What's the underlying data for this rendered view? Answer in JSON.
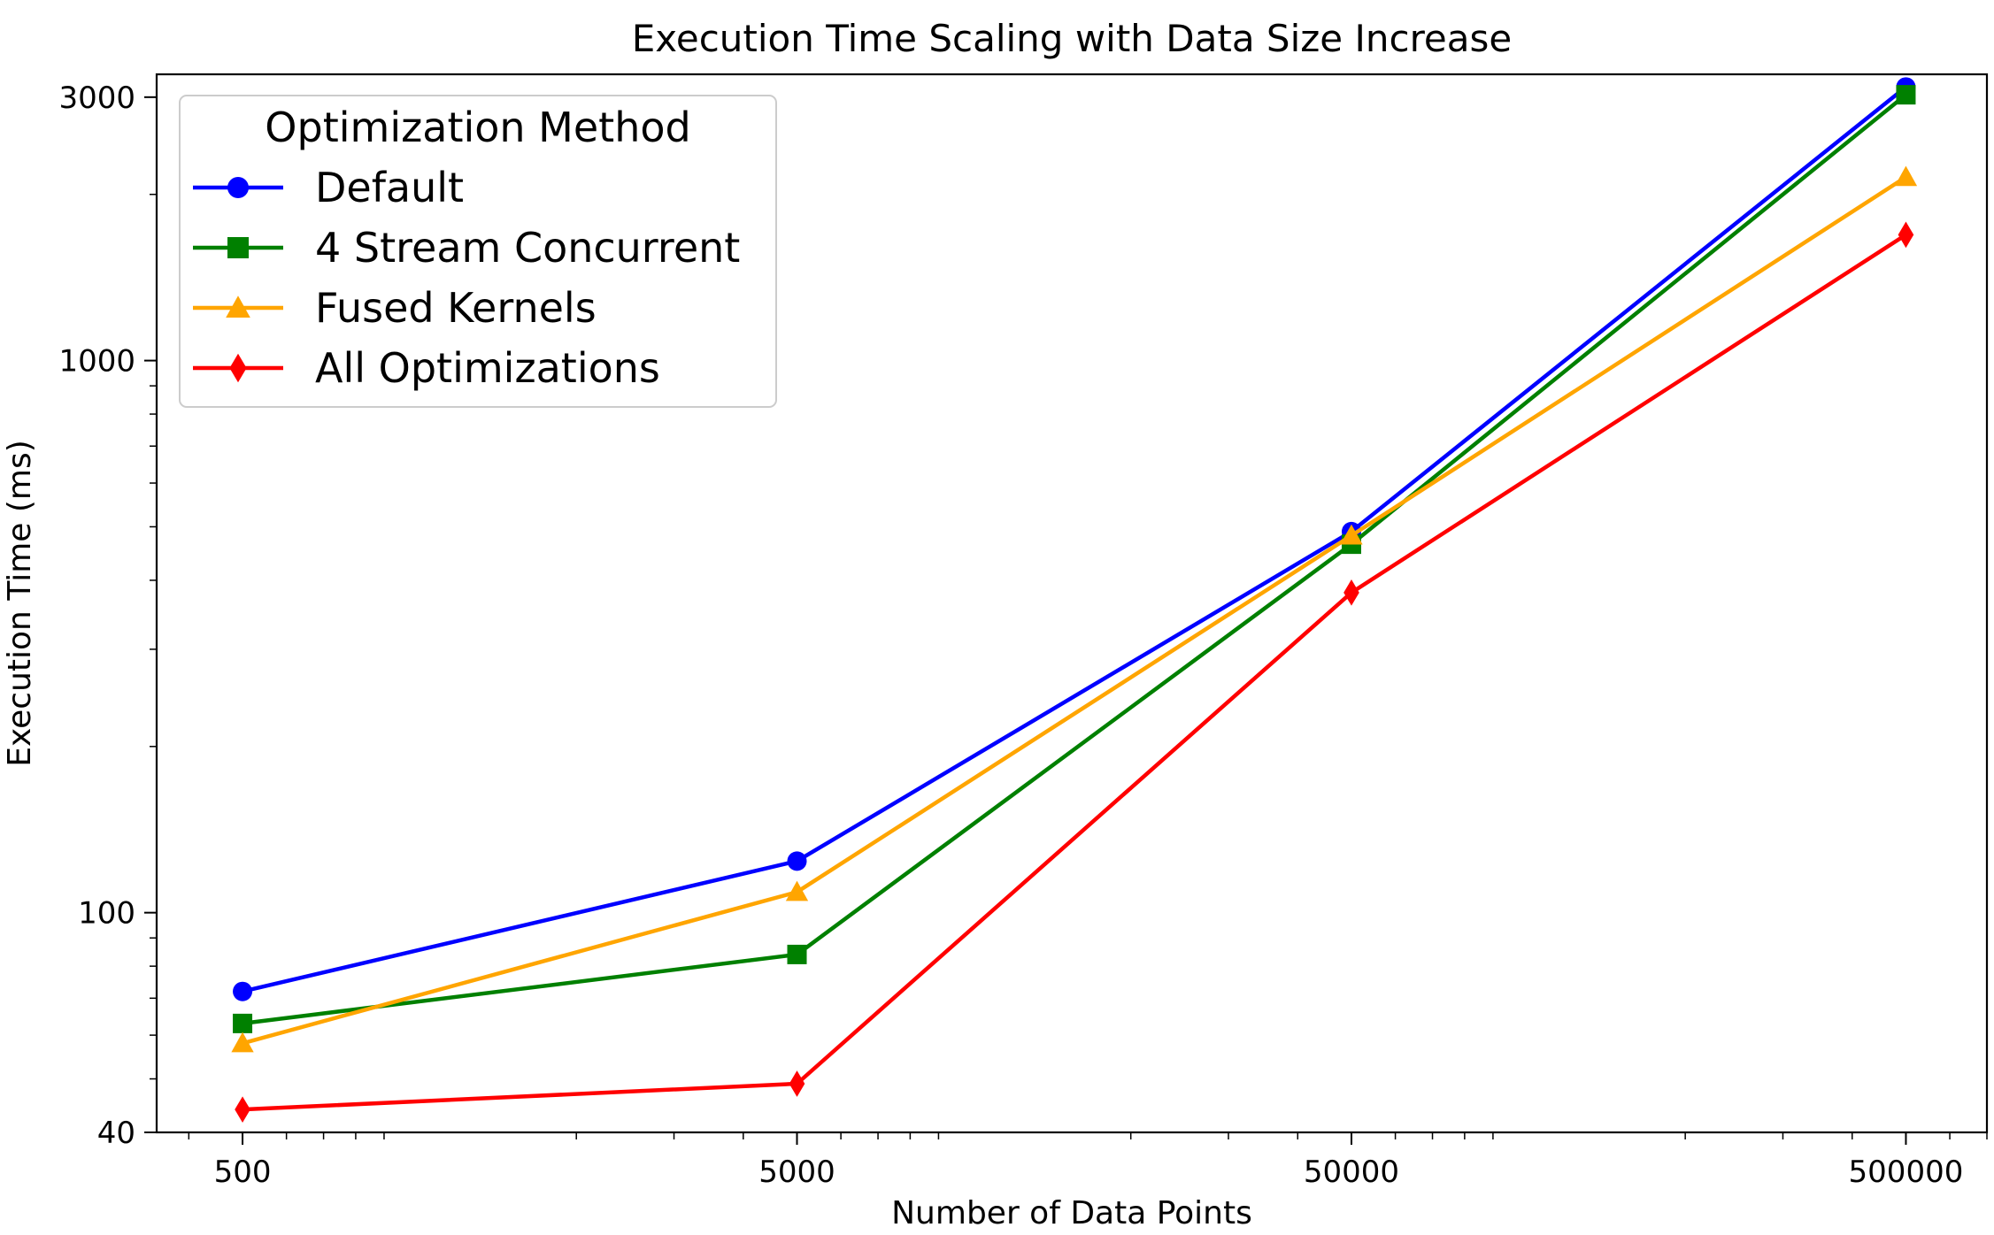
{
  "chart_data": {
    "type": "line",
    "title": "Execution Time Scaling with Data Size Increase",
    "xlabel": "Number of Data Points",
    "ylabel": "Execution Time (ms)",
    "xscale": "log",
    "yscale": "log",
    "x": [
      500,
      5000,
      50000,
      500000
    ],
    "xticks": [
      "500",
      "5000",
      "50000",
      "500000"
    ],
    "yticks": [
      {
        "value": 40,
        "label": "40"
      },
      {
        "value": 100,
        "label": "100"
      },
      {
        "value": 1000,
        "label": "1000"
      },
      {
        "value": 3000,
        "label": "3000"
      }
    ],
    "xlim": [
      350,
      700000
    ],
    "ylim": [
      40,
      3300
    ],
    "grid": false,
    "legend": {
      "title": "Optimization Method",
      "placement": "top-left"
    },
    "series": [
      {
        "name": "Default",
        "color": "#0000ff",
        "marker": "circle",
        "values": [
          72,
          124,
          490,
          3130
        ]
      },
      {
        "name": "4 Stream Concurrent",
        "color": "#008000",
        "marker": "square",
        "values": [
          63,
          84,
          465,
          3030
        ]
      },
      {
        "name": "Fused Kernels",
        "color": "#ffa500",
        "marker": "triangle",
        "values": [
          58,
          109,
          482,
          2150
        ]
      },
      {
        "name": "All Optimizations",
        "color": "#ff0000",
        "marker": "diamond",
        "values": [
          44,
          49,
          380,
          1690
        ]
      }
    ]
  }
}
